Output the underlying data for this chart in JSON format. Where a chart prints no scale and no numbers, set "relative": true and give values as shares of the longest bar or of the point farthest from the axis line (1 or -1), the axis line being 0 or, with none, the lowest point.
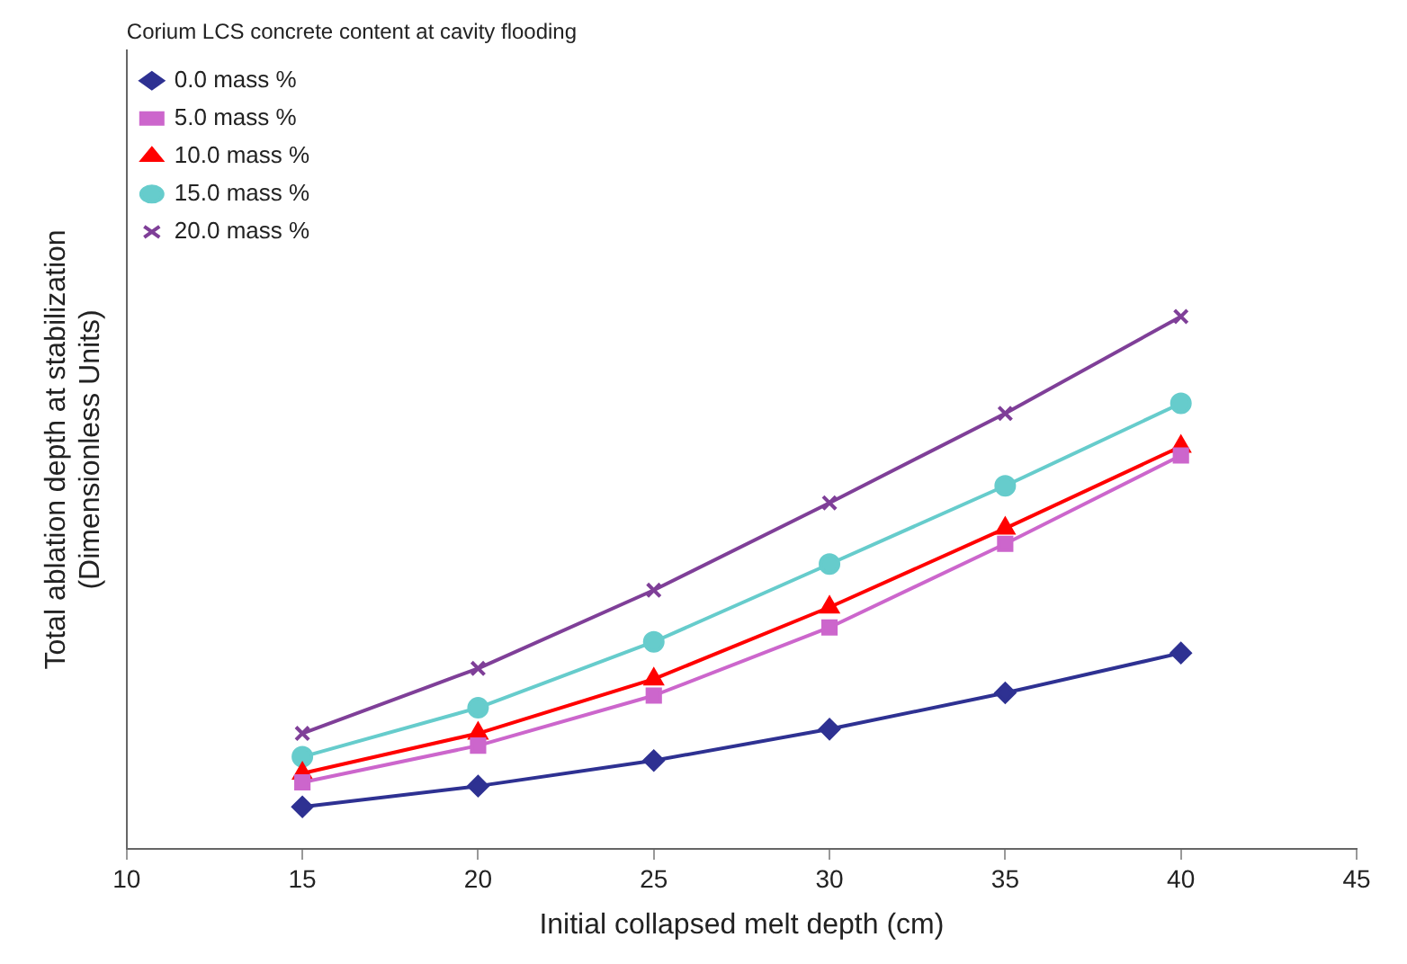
{
  "chart_data": {
    "type": "line",
    "relative": true,
    "xlabel": "Initial collapsed melt depth (cm)",
    "ylabel": "Total ablation depth at stabilization\n(Dimensionless Units)",
    "legend_title": "Corium LCS concrete content at cavity flooding",
    "x": [
      15,
      20,
      25,
      30,
      35,
      40
    ],
    "xlim": [
      10,
      45
    ],
    "xticks": [
      10,
      15,
      20,
      25,
      30,
      35,
      40,
      45
    ],
    "legend": "top left",
    "series": [
      {
        "name": "0.0 mass %",
        "color": "#2e3192",
        "marker": "diamond",
        "values": [
          0.079,
          0.118,
          0.166,
          0.225,
          0.293,
          0.368
        ]
      },
      {
        "name": "5.0 mass %",
        "color": "#cc66cc",
        "marker": "square",
        "values": [
          0.125,
          0.194,
          0.288,
          0.416,
          0.573,
          0.739
        ]
      },
      {
        "name": "10.0 mass %",
        "color": "#ff0000",
        "marker": "triangle",
        "values": [
          0.142,
          0.217,
          0.319,
          0.454,
          0.602,
          0.756
        ]
      },
      {
        "name": "15.0 mass %",
        "color": "#66cccc",
        "marker": "circle",
        "values": [
          0.173,
          0.265,
          0.389,
          0.535,
          0.682,
          0.837
        ]
      },
      {
        "name": "20.0 mass %",
        "color": "#7f3f98",
        "marker": "cross",
        "values": [
          0.217,
          0.339,
          0.486,
          0.65,
          0.818,
          1
        ]
      }
    ]
  }
}
